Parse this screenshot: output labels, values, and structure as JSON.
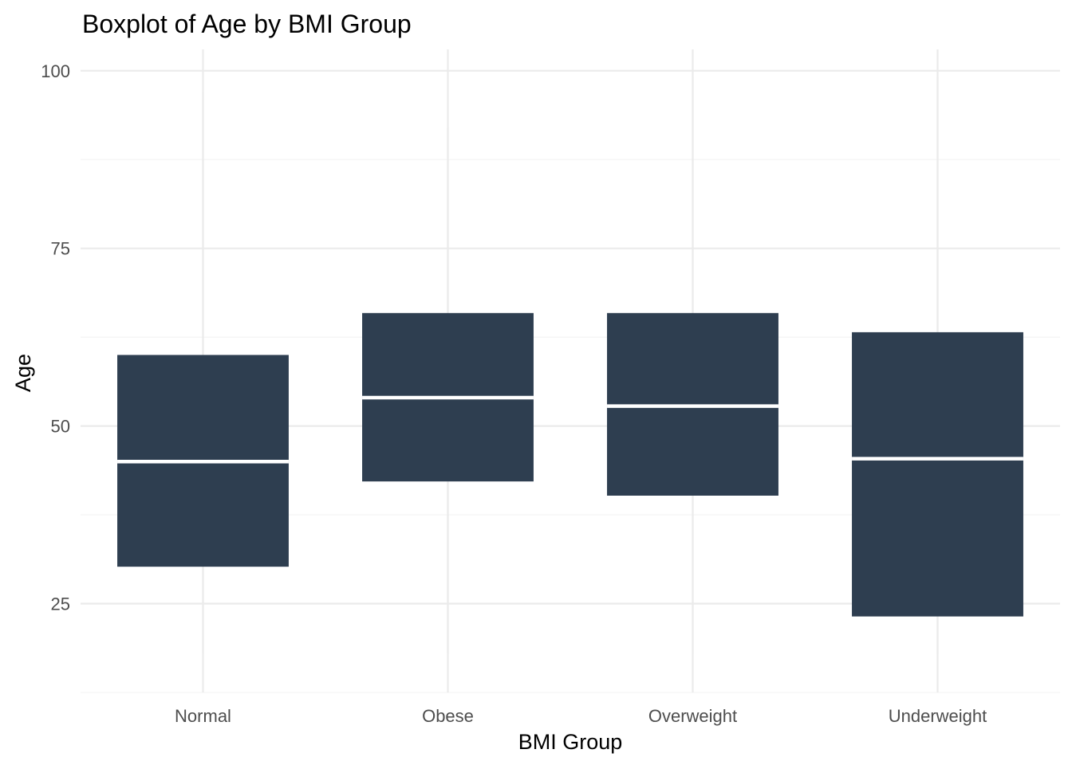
{
  "chart_data": {
    "type": "boxplot",
    "title": "Boxplot of Age by BMI Group",
    "xlabel": "BMI Group",
    "ylabel": "Age",
    "categories": [
      "Normal",
      "Obese",
      "Overweight",
      "Underweight"
    ],
    "boxes": [
      {
        "category": "Normal",
        "whisker_low": 18,
        "q1": 30.2,
        "median": 45,
        "q3": 60,
        "whisker_high": 97
      },
      {
        "category": "Obese",
        "whisker_low": 18,
        "q1": 42.2,
        "median": 54,
        "q3": 65.9,
        "whisker_high": 92
      },
      {
        "category": "Overweight",
        "whisker_low": 18,
        "q1": 40.2,
        "median": 52.8,
        "q3": 65.9,
        "whisker_high": 99
      },
      {
        "category": "Underweight",
        "whisker_low": 18,
        "q1": 23.2,
        "median": 45.4,
        "q3": 63.2,
        "whisker_high": 99
      }
    ],
    "y_ticks": [
      25,
      50,
      75,
      100
    ],
    "ylim": [
      12.5,
      103
    ],
    "grid": true,
    "box_color": "#2e3e50",
    "median_color": "#ffffff",
    "whisker_color": "#ebebeb",
    "legend": "none"
  }
}
